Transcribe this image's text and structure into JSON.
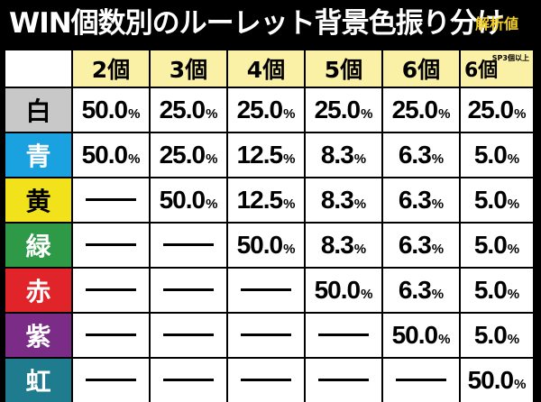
{
  "title": "WIN個数別のルーレット背景色振り分け",
  "subtitle": "解析値",
  "columns": [
    {
      "label": "2個",
      "note": ""
    },
    {
      "label": "3個",
      "note": ""
    },
    {
      "label": "4個",
      "note": ""
    },
    {
      "label": "5個",
      "note": ""
    },
    {
      "label": "6個",
      "note": ""
    },
    {
      "label": "6個",
      "note": "SP3個以上"
    }
  ],
  "rows": [
    {
      "label": "白",
      "color": "#c8c8c8",
      "text_color": "#000000",
      "values": [
        "50.0",
        "25.0",
        "25.0",
        "25.0",
        "25.0",
        "25.0"
      ]
    },
    {
      "label": "青",
      "color": "#1aa1e0",
      "text_color": "#ffffff",
      "values": [
        "50.0",
        "25.0",
        "12.5",
        "8.3",
        "6.3",
        "5.0"
      ]
    },
    {
      "label": "黄",
      "color": "#f2e21b",
      "text_color": "#000000",
      "values": [
        "",
        "50.0",
        "12.5",
        "8.3",
        "6.3",
        "5.0"
      ]
    },
    {
      "label": "緑",
      "color": "#2e9a47",
      "text_color": "#ffffff",
      "values": [
        "",
        "",
        "50.0",
        "8.3",
        "6.3",
        "5.0"
      ]
    },
    {
      "label": "赤",
      "color": "#e0242a",
      "text_color": "#ffffff",
      "values": [
        "",
        "",
        "",
        "50.0",
        "6.3",
        "5.0"
      ]
    },
    {
      "label": "紫",
      "color": "#7b2c86",
      "text_color": "#ffffff",
      "values": [
        "",
        "",
        "",
        "",
        "50.0",
        "5.0"
      ]
    },
    {
      "label": "虹",
      "color": "#1f7c8f",
      "text_color": "#ffffff",
      "values": [
        "",
        "",
        "",
        "",
        "",
        "50.0"
      ]
    }
  ],
  "percent_sign": "%"
}
